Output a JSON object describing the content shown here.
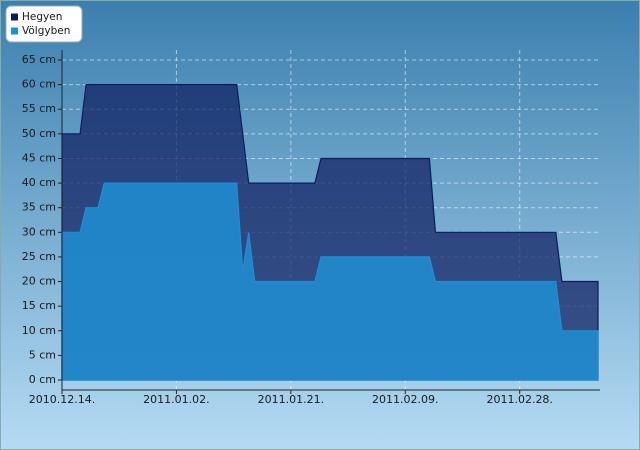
{
  "chart_data": {
    "type": "area",
    "x": [
      "2010-12-14",
      "2010-12-17",
      "2010-12-18",
      "2010-12-20",
      "2010-12-21",
      "2011-01-12",
      "2011-01-13",
      "2011-01-14",
      "2011-01-15",
      "2011-01-25",
      "2011-01-26",
      "2011-02-13",
      "2011-02-14",
      "2011-03-06",
      "2011-03-07",
      "2011-03-13"
    ],
    "series": [
      {
        "name": "Hegyen",
        "color": "#0d1b5e",
        "values": [
          50,
          50,
          60,
          60,
          60,
          60,
          50,
          40,
          40,
          40,
          45,
          45,
          30,
          30,
          20,
          20
        ]
      },
      {
        "name": "Völgyben",
        "color": "#1e8fd4",
        "values": [
          30,
          30,
          35,
          35,
          40,
          40,
          22,
          30,
          20,
          20,
          25,
          25,
          20,
          20,
          10,
          10
        ]
      }
    ],
    "xlim": [
      "2010-12-14",
      "2011-03-13"
    ],
    "xticks": [
      {
        "value": "2010-12-14",
        "label": "2010.12.14."
      },
      {
        "value": "2011-01-02",
        "label": "2011.01.02."
      },
      {
        "value": "2011-01-21",
        "label": "2011.01.21."
      },
      {
        "value": "2011-02-09",
        "label": "2011.02.09."
      },
      {
        "value": "2011-02-28",
        "label": "2011.02.28."
      }
    ],
    "ylim": [
      0,
      65
    ],
    "yticks": [
      {
        "value": 0,
        "label": "0 cm"
      },
      {
        "value": 5,
        "label": "5 cm"
      },
      {
        "value": 10,
        "label": "10 cm"
      },
      {
        "value": 15,
        "label": "15 cm"
      },
      {
        "value": 20,
        "label": "20 cm"
      },
      {
        "value": 25,
        "label": "25 cm"
      },
      {
        "value": 30,
        "label": "30 cm"
      },
      {
        "value": 35,
        "label": "35 cm"
      },
      {
        "value": 40,
        "label": "40 cm"
      },
      {
        "value": 45,
        "label": "45 cm"
      },
      {
        "value": 50,
        "label": "50 cm"
      },
      {
        "value": 55,
        "label": "55 cm"
      },
      {
        "value": 60,
        "label": "60 cm"
      },
      {
        "value": 65,
        "label": "65 cm"
      }
    ],
    "grid": true,
    "legend": "top-left"
  }
}
